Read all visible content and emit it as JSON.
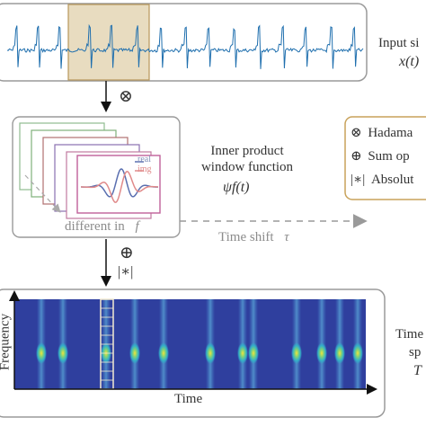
{
  "input_panel": {
    "label": "Input si",
    "formula": "x(t)"
  },
  "ops": {
    "hadamard_symbol": "⊗",
    "sum_symbol": "⊕",
    "abs_symbol": "|∗|"
  },
  "window_panel": {
    "legend_real": "real",
    "legend_img": "img",
    "caption": "different in",
    "caption_var": "f",
    "title_line1": "Inner product",
    "title_line2": "window function",
    "formula": "ψf(t)"
  },
  "time_shift": {
    "label": "Time shift",
    "symbol": "τ"
  },
  "legend_box": {
    "items": [
      {
        "symbol": "⊗",
        "text": "Hadama"
      },
      {
        "symbol": "⊕",
        "text": "Sum op"
      },
      {
        "symbol": "|∗|",
        "text": "Absolut"
      }
    ]
  },
  "spectrum_panel": {
    "y_axis": "Frequency",
    "x_axis": "Time",
    "right_label_1": "Time",
    "right_label_2": "sp",
    "right_label_3": "T"
  },
  "colors": {
    "signal": "#1f6fae",
    "highlight_fill": "#e8dcc0",
    "highlight_stroke": "#b8975a",
    "heatmap_bg": "#2f3f9e",
    "wave_real": "#5a6fb0",
    "wave_img": "#e08a8a"
  }
}
